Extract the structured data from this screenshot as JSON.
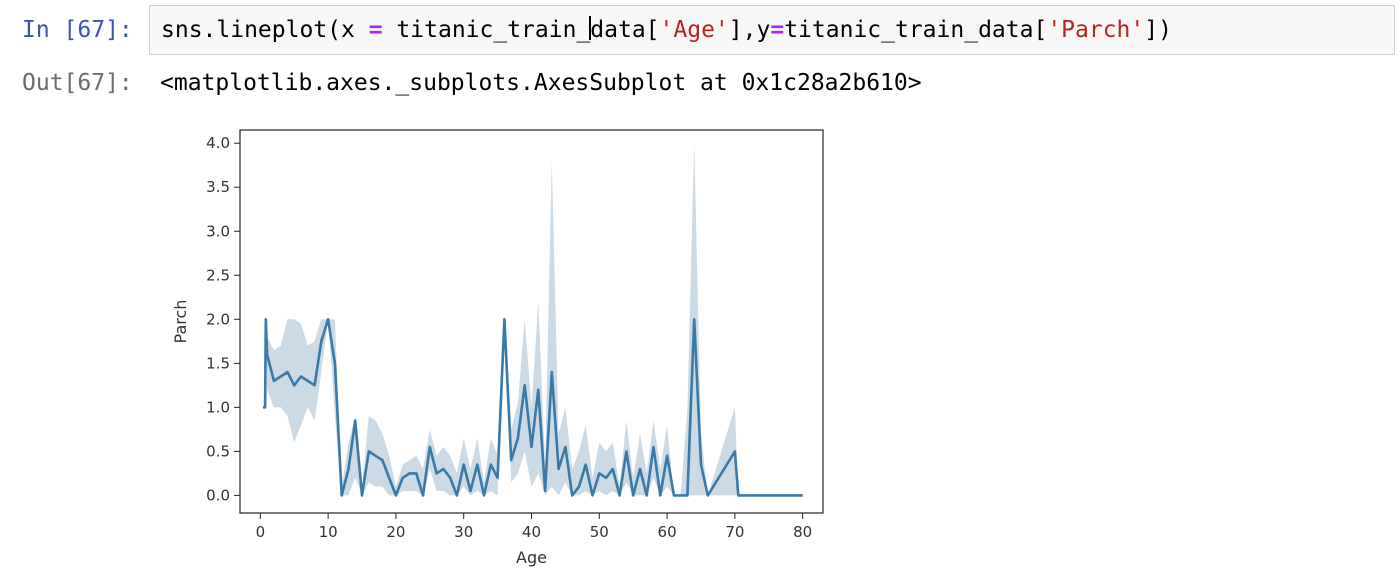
{
  "cell": {
    "in_prompt": "In [67]:",
    "out_prompt": "Out[67]:",
    "code": {
      "t1": "sns.lineplot(x ",
      "eq1": "=",
      "t2": " titanic_train_",
      "t3": "data[",
      "s1": "'Age'",
      "t4": "],y",
      "eq2": "=",
      "t5": "titanic_train_data[",
      "s2": "'Parch'",
      "t6": "])"
    },
    "output_repr": "<matplotlib.axes._subplots.AxesSubplot at 0x1c28a2b610>"
  },
  "colors": {
    "line": "#3a7aa8",
    "band": "#b9cddc"
  },
  "chart_data": {
    "type": "line",
    "xlabel": "Age",
    "ylabel": "Parch",
    "xlim": [
      -3,
      83
    ],
    "ylim": [
      -0.2,
      4.15
    ],
    "xticks": [
      0,
      10,
      20,
      30,
      40,
      50,
      60,
      70,
      80
    ],
    "yticks": [
      0.0,
      0.5,
      1.0,
      1.5,
      2.0,
      2.5,
      3.0,
      3.5,
      4.0
    ],
    "ytick_labels": [
      "0.0",
      "0.5",
      "1.0",
      "1.5",
      "2.0",
      "2.5",
      "3.0",
      "3.5",
      "4.0"
    ],
    "grid": false,
    "series": [
      {
        "x": [
          0.4,
          0.7,
          0.8,
          1,
          2,
          3,
          4,
          5,
          6,
          7,
          8,
          9,
          10,
          11,
          12,
          13,
          14,
          15,
          16,
          17,
          18,
          19,
          20,
          21,
          22,
          23,
          24,
          25,
          26,
          27,
          28,
          29,
          30,
          31,
          32,
          33,
          34,
          35,
          36,
          37,
          38,
          39,
          40,
          41,
          42,
          43,
          44,
          45,
          46,
          47,
          48,
          49,
          50,
          51,
          52,
          53,
          54,
          55,
          56,
          57,
          58,
          59,
          60,
          61,
          62,
          63,
          64,
          65,
          66,
          70,
          70.5,
          71,
          74,
          80
        ],
        "y": [
          1.0,
          1.0,
          2.0,
          1.6,
          1.3,
          1.35,
          1.4,
          1.25,
          1.35,
          1.3,
          1.25,
          1.75,
          2.0,
          1.5,
          0.0,
          0.3,
          0.85,
          0.0,
          0.5,
          0.45,
          0.4,
          0.2,
          0.0,
          0.2,
          0.25,
          0.25,
          0.0,
          0.55,
          0.25,
          0.3,
          0.2,
          0.0,
          0.35,
          0.05,
          0.35,
          0.0,
          0.35,
          0.2,
          2.0,
          0.4,
          0.65,
          1.25,
          0.55,
          1.2,
          0.05,
          1.4,
          0.3,
          0.55,
          0.0,
          0.1,
          0.35,
          0.0,
          0.25,
          0.2,
          0.3,
          0.0,
          0.5,
          0.0,
          0.3,
          0.0,
          0.55,
          0.0,
          0.45,
          0.0,
          0.0,
          0.0,
          2.0,
          0.35,
          0.0,
          0.5,
          0.0,
          0.0,
          0.0,
          0.0
        ],
        "ci_upper": [
          1.0,
          1.0,
          2.0,
          1.8,
          1.65,
          1.7,
          2.0,
          2.0,
          1.95,
          1.7,
          1.75,
          2.0,
          2.0,
          2.0,
          0.1,
          0.6,
          0.9,
          0.1,
          0.9,
          0.85,
          0.7,
          0.45,
          0.1,
          0.35,
          0.4,
          0.45,
          0.3,
          0.75,
          0.45,
          0.55,
          0.45,
          0.25,
          0.65,
          0.3,
          0.65,
          0.15,
          0.65,
          0.45,
          2.0,
          0.75,
          1.05,
          2.0,
          1.0,
          2.2,
          0.35,
          3.8,
          0.7,
          1.0,
          0.3,
          0.5,
          0.8,
          0.2,
          0.6,
          0.5,
          0.6,
          0.1,
          0.85,
          0.2,
          0.7,
          0.25,
          0.85,
          0.3,
          0.8,
          0.0,
          0.0,
          1.0,
          4.0,
          0.7,
          0.0,
          1.0,
          0.0,
          0.0,
          0.0,
          0.0
        ],
        "ci_lower": [
          1.0,
          1.0,
          2.0,
          1.2,
          1.0,
          1.0,
          0.9,
          0.6,
          0.8,
          1.0,
          0.85,
          1.4,
          2.0,
          0.9,
          0.0,
          0.0,
          0.2,
          0.0,
          0.15,
          0.1,
          0.1,
          0.0,
          0.0,
          0.05,
          0.05,
          0.05,
          0.0,
          0.3,
          0.05,
          0.05,
          0.0,
          0.0,
          0.1,
          0.0,
          0.05,
          0.0,
          0.05,
          0.0,
          2.0,
          0.15,
          0.25,
          0.5,
          0.1,
          0.25,
          0.0,
          0.1,
          0.0,
          0.15,
          0.0,
          0.0,
          0.05,
          0.0,
          0.05,
          0.0,
          0.05,
          0.0,
          0.15,
          0.0,
          0.0,
          0.0,
          0.2,
          0.0,
          0.1,
          0.0,
          0.0,
          0.0,
          0.0,
          0.0,
          0.0,
          0.0,
          0.0,
          0.0,
          0.0,
          0.0
        ]
      }
    ]
  }
}
